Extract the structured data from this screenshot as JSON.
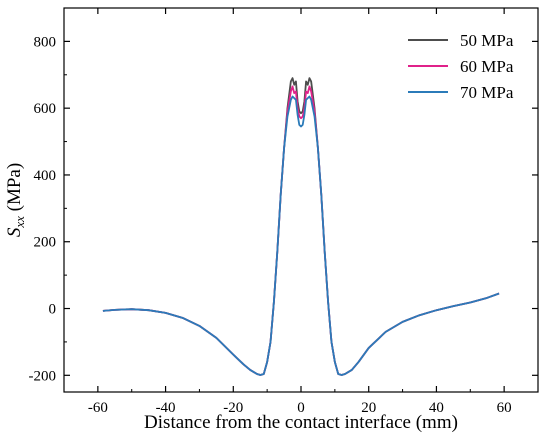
{
  "chart_data": {
    "type": "line",
    "title": "",
    "xlabel": "Distance from the contact interface (mm)",
    "ylabel_main": "S",
    "ylabel_sub": "xx",
    "ylabel_unit": " (MPa)",
    "xlim": [
      -70,
      70
    ],
    "ylim": [
      -250,
      900
    ],
    "xticks": [
      -60,
      -40,
      -20,
      0,
      20,
      40,
      60
    ],
    "yticks": [
      -200,
      0,
      200,
      400,
      600,
      800
    ],
    "grid": false,
    "legend_position": "top-right",
    "colors": {
      "axis": "#000000",
      "series_50": "#4d4d4d",
      "series_60": "#e0218a",
      "series_70": "#2b7bb9"
    },
    "series": [
      {
        "name": "50 MPa",
        "color": "#4d4d4d",
        "x": [
          -58.5,
          -55,
          -50,
          -45,
          -40,
          -35,
          -30,
          -25,
          -20,
          -17,
          -15,
          -13,
          -12,
          -11,
          -10,
          -9,
          -8,
          -7,
          -6,
          -5,
          -4,
          -3,
          -2.5,
          -2,
          -1.5,
          -1,
          -0.5,
          0,
          0.5,
          1,
          1.5,
          2,
          2.5,
          3,
          4,
          5,
          6,
          7,
          8,
          9,
          10,
          11,
          12,
          13,
          15,
          17,
          20,
          25,
          30,
          35,
          40,
          45,
          50,
          55,
          58.5
        ],
        "values": [
          -7,
          -4,
          -2,
          -5,
          -13,
          -28,
          -52,
          -88,
          -138,
          -167,
          -184,
          -196,
          -199,
          -196,
          -160,
          -100,
          20,
          170,
          340,
          480,
          600,
          680,
          690,
          670,
          680,
          620,
          590,
          585,
          590,
          620,
          680,
          670,
          690,
          680,
          600,
          480,
          340,
          170,
          20,
          -100,
          -160,
          -196,
          -199,
          -196,
          -184,
          -160,
          -118,
          -70,
          -40,
          -20,
          -5,
          7,
          18,
          32,
          45
        ]
      },
      {
        "name": "60 MPa",
        "color": "#e0218a",
        "x": [
          -58.5,
          -55,
          -50,
          -45,
          -40,
          -35,
          -30,
          -25,
          -20,
          -17,
          -15,
          -13,
          -12,
          -11,
          -10,
          -9,
          -8,
          -7,
          -6,
          -5,
          -4,
          -3,
          -2.5,
          -2,
          -1.5,
          -1,
          -0.5,
          0,
          0.5,
          1,
          1.5,
          2,
          2.5,
          3,
          4,
          5,
          6,
          7,
          8,
          9,
          10,
          11,
          12,
          13,
          15,
          17,
          20,
          25,
          30,
          35,
          40,
          45,
          50,
          55,
          58.5
        ],
        "values": [
          -7,
          -4,
          -2,
          -5,
          -13,
          -28,
          -52,
          -88,
          -138,
          -167,
          -184,
          -196,
          -199,
          -196,
          -160,
          -100,
          20,
          170,
          340,
          480,
          590,
          650,
          665,
          645,
          650,
          600,
          575,
          570,
          575,
          600,
          650,
          645,
          665,
          650,
          590,
          480,
          340,
          170,
          20,
          -100,
          -160,
          -196,
          -199,
          -196,
          -184,
          -160,
          -118,
          -70,
          -40,
          -20,
          -5,
          7,
          18,
          32,
          45
        ]
      },
      {
        "name": "70 MPa",
        "color": "#2b7bb9",
        "x": [
          -58.5,
          -55,
          -50,
          -45,
          -40,
          -35,
          -30,
          -25,
          -20,
          -17,
          -15,
          -13,
          -12,
          -11,
          -10,
          -9,
          -8,
          -7,
          -6,
          -5,
          -4,
          -3,
          -2.5,
          -2,
          -1.5,
          -1,
          -0.5,
          0,
          0.5,
          1,
          1.5,
          2,
          2.5,
          3,
          4,
          5,
          6,
          7,
          8,
          9,
          10,
          11,
          12,
          13,
          15,
          17,
          20,
          25,
          30,
          35,
          40,
          45,
          50,
          55,
          58.5
        ],
        "values": [
          -7,
          -4,
          -2,
          -5,
          -13,
          -28,
          -52,
          -88,
          -138,
          -167,
          -184,
          -196,
          -199,
          -196,
          -160,
          -100,
          20,
          170,
          340,
          480,
          575,
          625,
          635,
          630,
          625,
          580,
          550,
          545,
          550,
          580,
          625,
          630,
          635,
          625,
          575,
          480,
          340,
          170,
          20,
          -100,
          -160,
          -196,
          -199,
          -196,
          -184,
          -160,
          -118,
          -70,
          -40,
          -20,
          -5,
          7,
          18,
          32,
          45
        ]
      }
    ]
  }
}
